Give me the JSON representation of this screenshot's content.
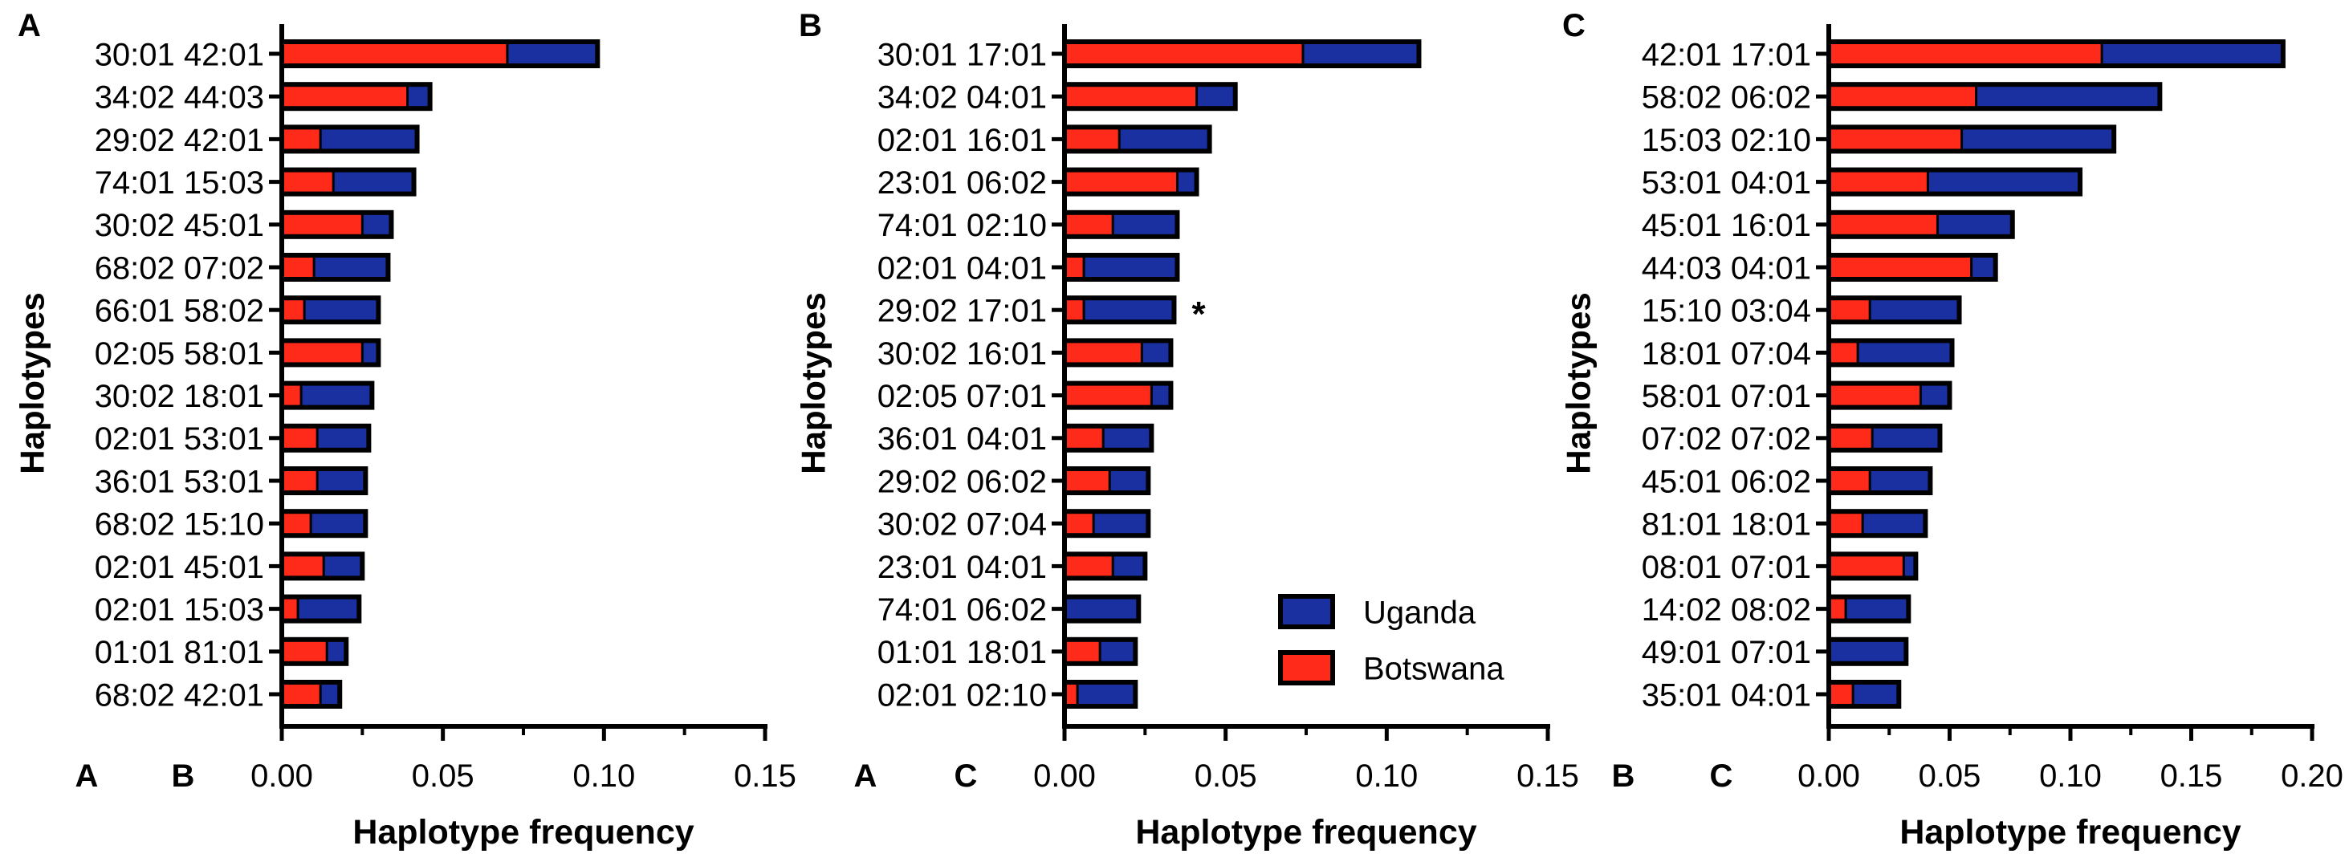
{
  "figure": {
    "series_names": [
      "Uganda",
      "Botswana"
    ],
    "colors": {
      "Uganda": "#1a2fa0",
      "Botswana": "#ff2a1a",
      "outline": "#000000"
    }
  },
  "chart_data": [
    {
      "type": "bar",
      "orientation": "horizontal",
      "stacked": true,
      "panel_label": "A",
      "ylabel": "Haplotypes",
      "xlabel": "Haplotype frequency",
      "locus_labels": [
        "A",
        "B"
      ],
      "xlim": [
        0,
        0.15
      ],
      "xticks": [
        "0.00",
        "0.05",
        "0.10",
        "0.15"
      ],
      "tick_values": [
        0,
        0.05,
        0.1,
        0.15
      ],
      "categories": [
        "30:01 42:01",
        "34:02 44:03",
        "29:02 42:01",
        "74:01 15:03",
        "30:02 45:01",
        "68:02 07:02",
        "66:01 58:02",
        "02:05 58:01",
        "30:02 18:01",
        "02:01 53:01",
        "36:01 53:01",
        "68:02 15:10",
        "02:01 45:01",
        "02:01 15:03",
        "01:01 81:01",
        "68:02 42:01"
      ],
      "series": [
        {
          "name": "Botswana",
          "values": [
            0.07,
            0.039,
            0.012,
            0.016,
            0.025,
            0.01,
            0.007,
            0.025,
            0.006,
            0.011,
            0.011,
            0.009,
            0.013,
            0.005,
            0.014,
            0.012
          ]
        },
        {
          "name": "Uganda",
          "values": [
            0.028,
            0.007,
            0.03,
            0.025,
            0.009,
            0.023,
            0.023,
            0.005,
            0.022,
            0.016,
            0.015,
            0.017,
            0.012,
            0.019,
            0.006,
            0.006
          ]
        }
      ],
      "annotations": []
    },
    {
      "type": "bar",
      "orientation": "horizontal",
      "stacked": true,
      "panel_label": "B",
      "ylabel": "Haplotypes",
      "xlabel": "Haplotype frequency",
      "locus_labels": [
        "A",
        "C"
      ],
      "xlim": [
        0,
        0.15
      ],
      "xticks": [
        "0.00",
        "0.05",
        "0.10",
        "0.15"
      ],
      "tick_values": [
        0,
        0.05,
        0.1,
        0.15
      ],
      "categories": [
        "30:01 17:01",
        "34:02 04:01",
        "02:01 16:01",
        "23:01 06:02",
        "74:01 02:10",
        "02:01 04:01",
        "29:02 17:01",
        "30:02 16:01",
        "02:05 07:01",
        "36:01 04:01",
        "29:02 06:02",
        "30:02 07:04",
        "23:01 04:01",
        "74:01 06:02",
        "01:01 18:01",
        "02:01 02:10"
      ],
      "series": [
        {
          "name": "Botswana",
          "values": [
            0.074,
            0.041,
            0.017,
            0.035,
            0.015,
            0.006,
            0.006,
            0.024,
            0.027,
            0.012,
            0.014,
            0.009,
            0.015,
            0.0,
            0.011,
            0.004
          ]
        },
        {
          "name": "Uganda",
          "values": [
            0.036,
            0.012,
            0.028,
            0.006,
            0.02,
            0.029,
            0.028,
            0.009,
            0.006,
            0.015,
            0.012,
            0.017,
            0.01,
            0.023,
            0.011,
            0.018
          ]
        }
      ],
      "annotations": [
        {
          "category": "29:02 17:01",
          "text": "*"
        }
      ]
    },
    {
      "type": "bar",
      "orientation": "horizontal",
      "stacked": true,
      "panel_label": "C",
      "ylabel": "Haplotypes",
      "xlabel": "Haplotype frequency",
      "locus_labels": [
        "B",
        "C"
      ],
      "xlim": [
        0,
        0.2
      ],
      "xticks": [
        "0.00",
        "0.05",
        "0.10",
        "0.15",
        "0.20"
      ],
      "tick_values": [
        0,
        0.05,
        0.1,
        0.15,
        0.2
      ],
      "categories": [
        "42:01 17:01",
        "58:02 06:02",
        "15:03 02:10",
        "53:01 04:01",
        "45:01 16:01",
        "44:03 04:01",
        "15:10 03:04",
        "18:01 07:04",
        "58:01 07:01",
        "07:02 07:02",
        "45:01 06:02",
        "81:01 18:01",
        "08:01 07:01",
        "14:02 08:02",
        "49:01 07:01",
        "35:01 04:01"
      ],
      "series": [
        {
          "name": "Botswana",
          "values": [
            0.113,
            0.061,
            0.055,
            0.041,
            0.045,
            0.059,
            0.017,
            0.012,
            0.038,
            0.018,
            0.017,
            0.014,
            0.031,
            0.007,
            0.0,
            0.01
          ]
        },
        {
          "name": "Uganda",
          "values": [
            0.075,
            0.076,
            0.063,
            0.063,
            0.031,
            0.01,
            0.037,
            0.039,
            0.012,
            0.028,
            0.025,
            0.026,
            0.005,
            0.026,
            0.032,
            0.019
          ]
        }
      ],
      "annotations": []
    }
  ]
}
